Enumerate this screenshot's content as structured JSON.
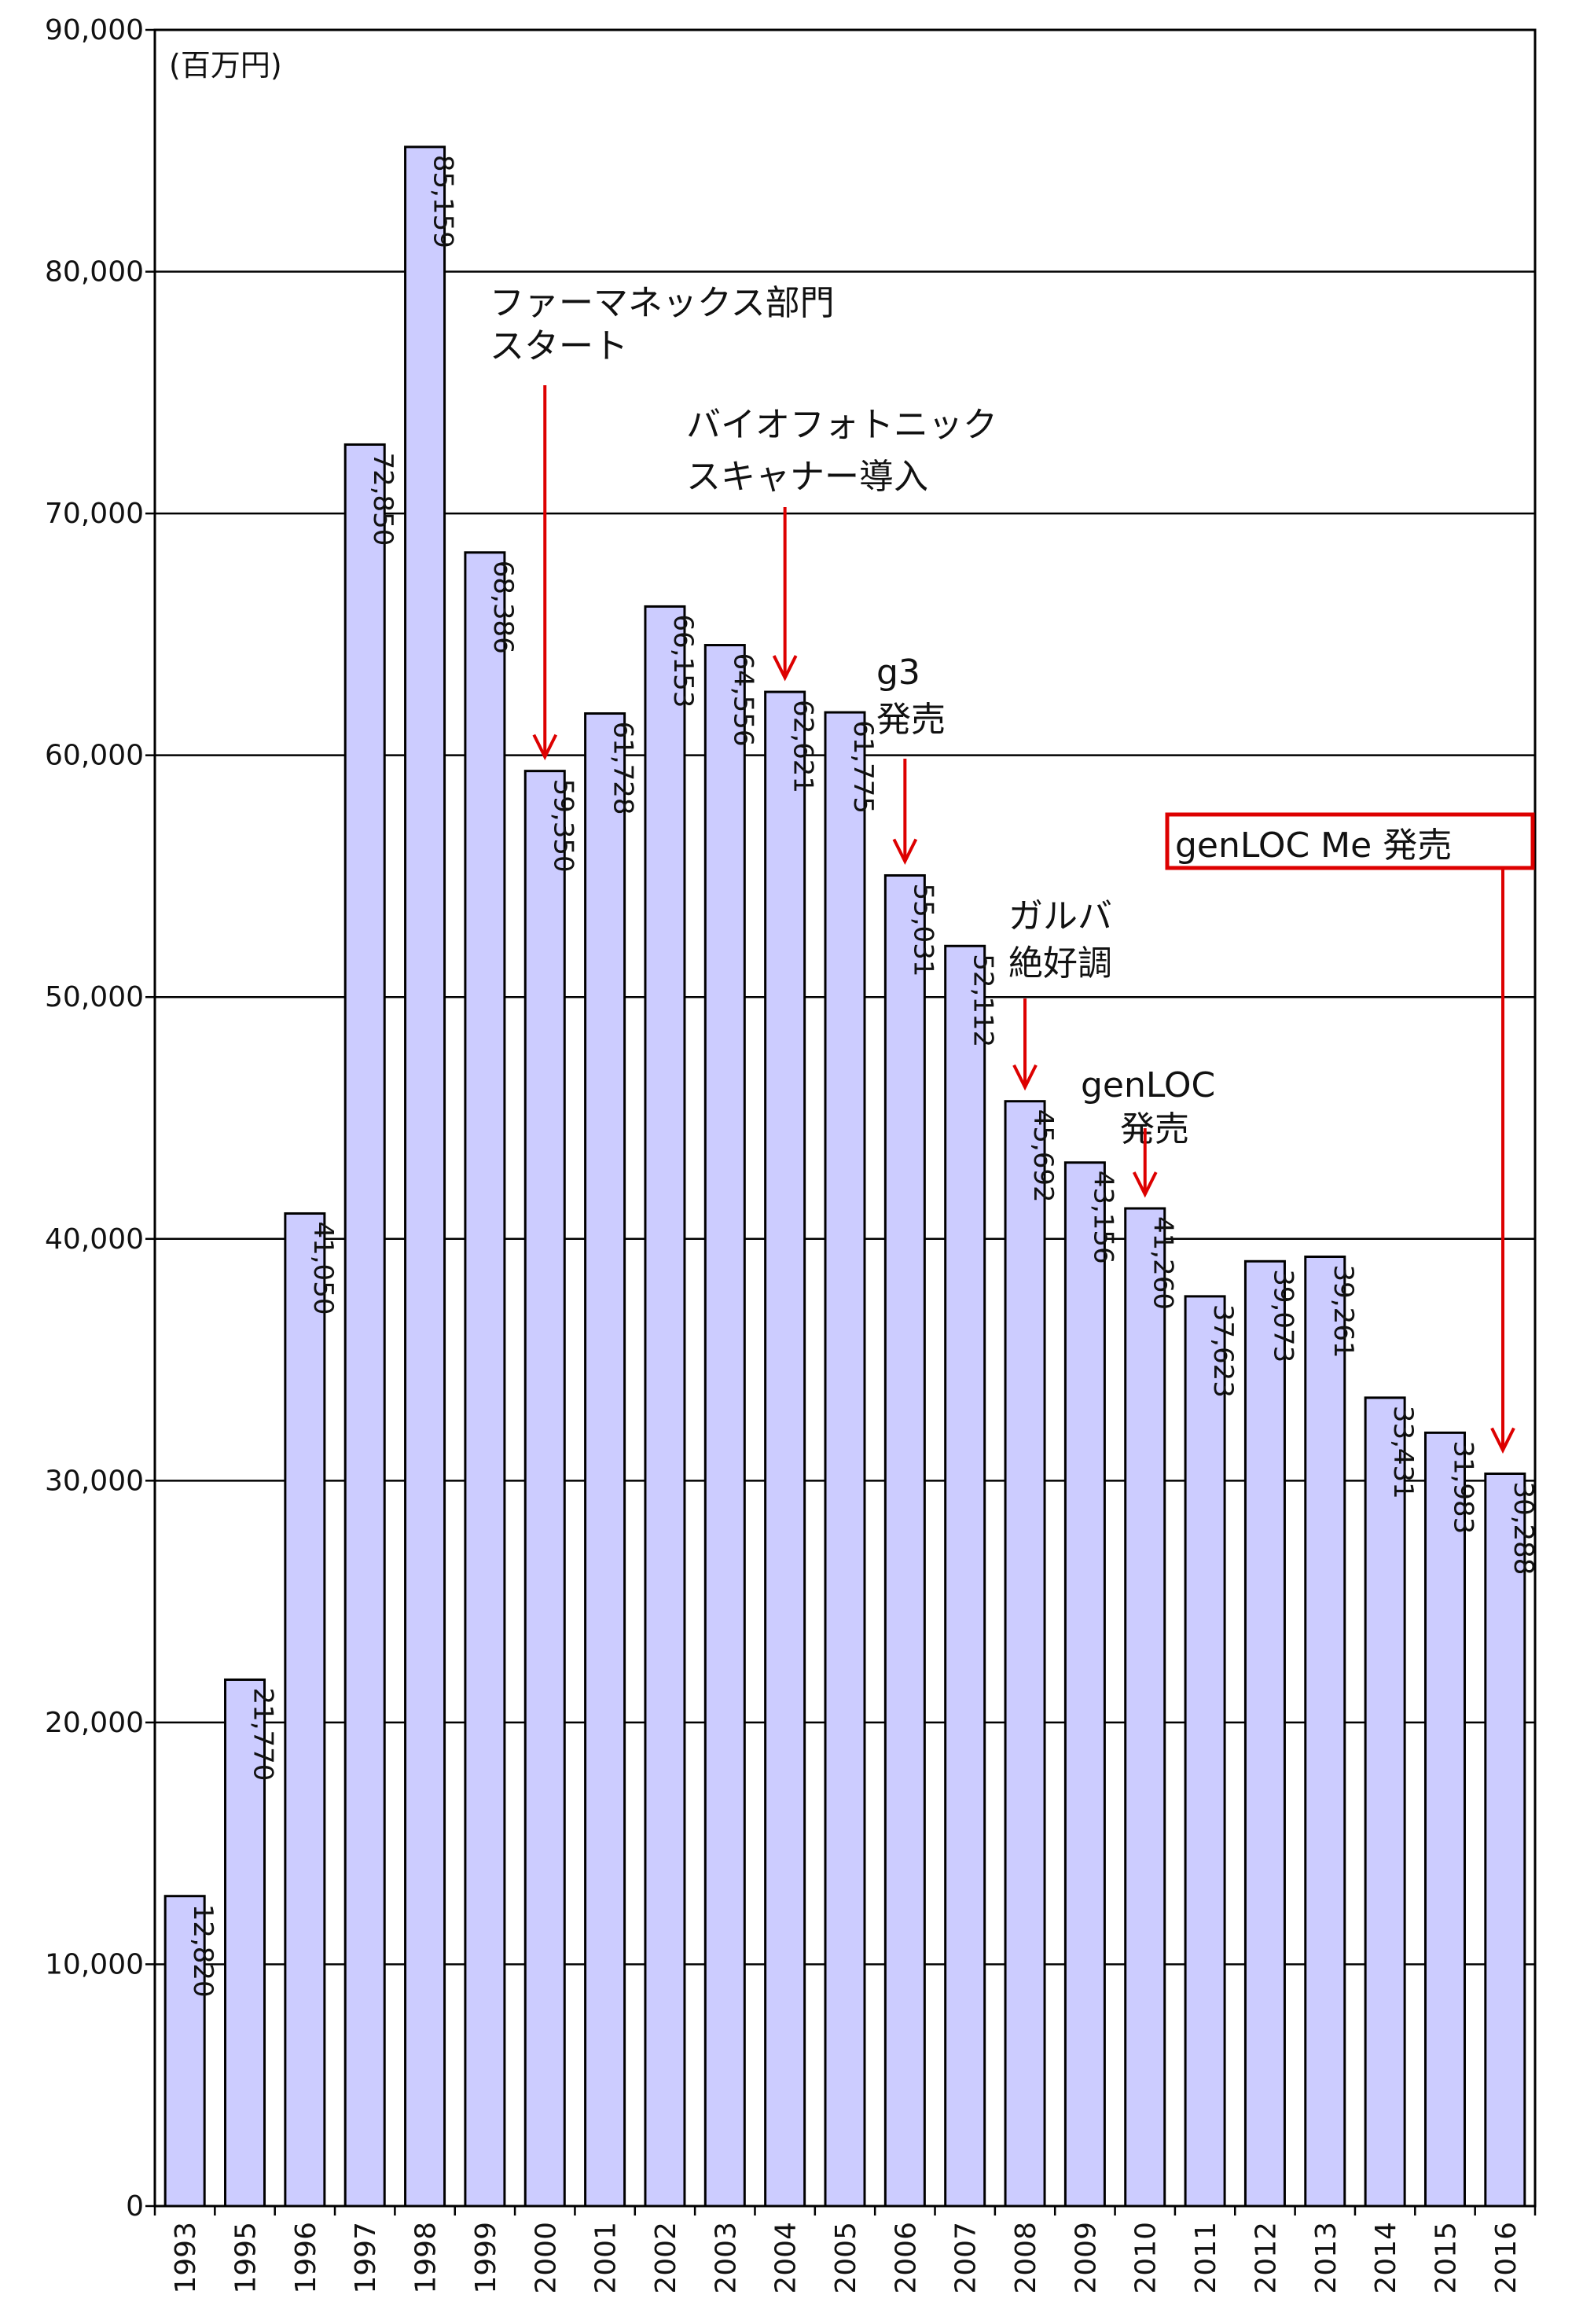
{
  "chart_data": {
    "type": "bar",
    "unit_label": "(百万円)",
    "categories": [
      "1993",
      "1995",
      "1996",
      "1997",
      "1998",
      "1999",
      "2000",
      "2001",
      "2002",
      "2003",
      "2004",
      "2005",
      "2006",
      "2007",
      "2008",
      "2009",
      "2010",
      "2011",
      "2012",
      "2013",
      "2014",
      "2015",
      "2016"
    ],
    "values": [
      12820,
      21770,
      41050,
      72850,
      85159,
      68386,
      59350,
      61728,
      66153,
      64556,
      62621,
      61775,
      55031,
      52112,
      45692,
      43156,
      41260,
      37623,
      39073,
      39261,
      33431,
      31983,
      30288
    ],
    "value_labels": [
      "12,820",
      "21,770",
      "41,050",
      "72,850",
      "85,159",
      "68,386",
      "59,350",
      "61,728",
      "66,153",
      "64,556",
      "62,621",
      "61,775",
      "55,031",
      "52,112",
      "45,692",
      "43,156",
      "41,260",
      "37,623",
      "39,073",
      "39,261",
      "33,431",
      "31,983",
      "30,288"
    ],
    "ylim": [
      0,
      90000
    ],
    "yticks": [
      0,
      10000,
      20000,
      30000,
      40000,
      50000,
      60000,
      70000,
      80000,
      90000
    ],
    "ytick_labels": [
      "0",
      "10,000",
      "20,000",
      "30,000",
      "40,000",
      "50,000",
      "60,000",
      "70,000",
      "80,000",
      "90,000"
    ],
    "grid": true,
    "colors": {
      "bar_fill": "#ccccff",
      "bar_stroke": "#000000",
      "arrow": "#dd0000",
      "highlight_box": "#dd0000"
    },
    "annotations": [
      {
        "lines": [
          "ファーマネックス部門",
          "スタート"
        ],
        "target": "2000"
      },
      {
        "lines": [
          "バイオフォトニック",
          "スキャナー導入"
        ],
        "target": "2004"
      },
      {
        "lines": [
          "g3",
          "発売"
        ],
        "target": "2006"
      },
      {
        "lines": [
          "ガルバ",
          "絶好調"
        ],
        "target": "2008"
      },
      {
        "lines": [
          "genLOC",
          "発売"
        ],
        "target": "2010"
      },
      {
        "lines": [
          "genLOC Me 発売"
        ],
        "target": "2016",
        "boxed": true
      }
    ]
  }
}
